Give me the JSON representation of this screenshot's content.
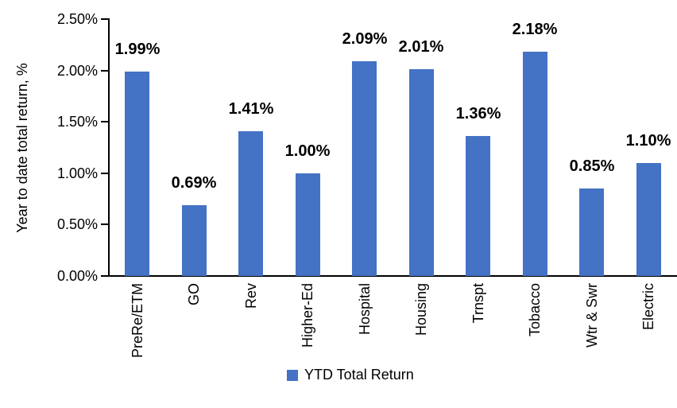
{
  "chart_data": {
    "type": "bar",
    "title": "",
    "categories": [
      "PreRe/ETM",
      "GO",
      "Rev",
      "Higher-Ed",
      "Hospital",
      "Housing",
      "Trnspt",
      "Tobacco",
      "Wtr & Swr",
      "Electric"
    ],
    "values": [
      1.99,
      0.69,
      1.41,
      1.0,
      2.09,
      2.01,
      1.36,
      2.18,
      0.85,
      1.1
    ],
    "data_labels": [
      "1.99%",
      "0.69%",
      "1.41%",
      "1.00%",
      "2.09%",
      "2.01%",
      "1.36%",
      "2.18%",
      "0.85%",
      "1.10%"
    ],
    "xlabel": "",
    "ylabel": "Year to date total return, %",
    "ylim": [
      0,
      2.5
    ],
    "ytick_step": 0.5,
    "ytick_labels": [
      "0.00%",
      "0.50%",
      "1.00%",
      "1.50%",
      "2.00%",
      "2.50%"
    ],
    "grid": false,
    "legend_position": "bottom",
    "legend": [
      {
        "label": "YTD Total Return",
        "color": "#4472C4"
      }
    ],
    "bar_color": "#4472C4"
  },
  "colors": {
    "bar": "#4472C4",
    "axis": "#000000",
    "text": "#000000",
    "background": "#FFFFFF"
  }
}
